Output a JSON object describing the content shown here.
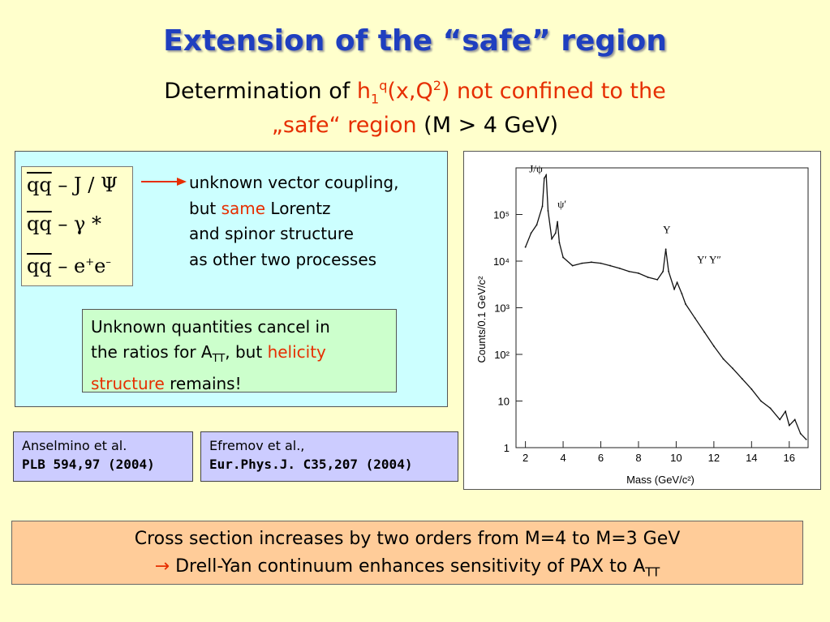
{
  "title": "Extension of the “safe” region",
  "subtitle": {
    "prefix": "Determination of ",
    "h": "h",
    "h_sub": "1",
    "h_sup": "q",
    "mid": "(x,Q",
    "q_sup": "2",
    "end": ") not confined to the",
    "line2_red": "„safe“ region",
    "line2_black": " (M > 4 GeV)"
  },
  "processes": [
    {
      "qq": "qq",
      "rest": " – J / Ψ"
    },
    {
      "qq": "qq",
      "rest": " – γ *"
    },
    {
      "qq": "qq",
      "rest": " – e",
      "sup1": "+",
      "e2": "e",
      "sup2": "–"
    }
  ],
  "note": {
    "line1": "unknown vector coupling,",
    "line2_a": "but ",
    "line2_red": "same",
    "line2_b": " Lorentz",
    "line3": "and spinor structure",
    "line4": "as other two processes"
  },
  "cancel_box": {
    "line1": "Unknown quantities cancel in",
    "line2_a": "the ratios for A",
    "line2_sub": "TT",
    "line2_b": ", but ",
    "line2_red": "helicity",
    "line3_red": "structure",
    "line3_b": " remains!"
  },
  "references": [
    {
      "author": "Anselmino et al.",
      "journal": "PLB 594,97 (2004)"
    },
    {
      "author": "Efremov et al.,",
      "journal": "Eur.Phys.J. C35,207 (2004)"
    }
  ],
  "bottom": {
    "line1": "Cross section increases by two orders from M=4 to M=3 GeV",
    "arrow": "→",
    "line2": " Drell-Yan continuum enhances sensitivity of PAX to A",
    "line2_sub": "TT"
  },
  "colors": {
    "title": "#1f3fbf",
    "highlight": "#e62e00"
  },
  "chart_data": {
    "type": "line",
    "xlabel": "Mass (GeV/c²)",
    "ylabel": "Counts/0.1 GeV/c²",
    "yscale": "log",
    "xlim": [
      1.5,
      17
    ],
    "ylim": [
      1,
      1000000
    ],
    "xticks": [
      "2",
      "4",
      "6",
      "8",
      "10",
      "12",
      "14",
      "16"
    ],
    "yticks": [
      "1",
      "10",
      "10²",
      "10³",
      "10⁴",
      "10⁵"
    ],
    "annotations": [
      "J/ψ",
      "ψ′",
      "Υ",
      "Υ′ Υ″"
    ],
    "series": [
      {
        "x": [
          2.0,
          2.3,
          2.6,
          2.9,
          3.0,
          3.1,
          3.2,
          3.4,
          3.6,
          3.7,
          3.8,
          4.0,
          4.5,
          5.0,
          5.5,
          6.0,
          6.5,
          7.0,
          7.5,
          8.0,
          8.5,
          9.0,
          9.3,
          9.45,
          9.6,
          9.9,
          10.05,
          10.3,
          10.5,
          11.0,
          11.5,
          12.0,
          12.5,
          13.0,
          13.5,
          14.0,
          14.5,
          15.0,
          15.5,
          15.8,
          16.0,
          16.3,
          16.6,
          16.9
        ],
        "y": [
          20000,
          40000,
          60000,
          150000,
          600000,
          700000,
          120000,
          30000,
          40000,
          70000,
          25000,
          12000,
          8000,
          9000,
          9500,
          9000,
          8000,
          7000,
          6000,
          5500,
          4500,
          4000,
          6000,
          18000,
          6000,
          2500,
          3500,
          2000,
          1200,
          600,
          300,
          150,
          80,
          50,
          30,
          18,
          10,
          7,
          4,
          6,
          3,
          4,
          2,
          1.5
        ]
      }
    ]
  }
}
